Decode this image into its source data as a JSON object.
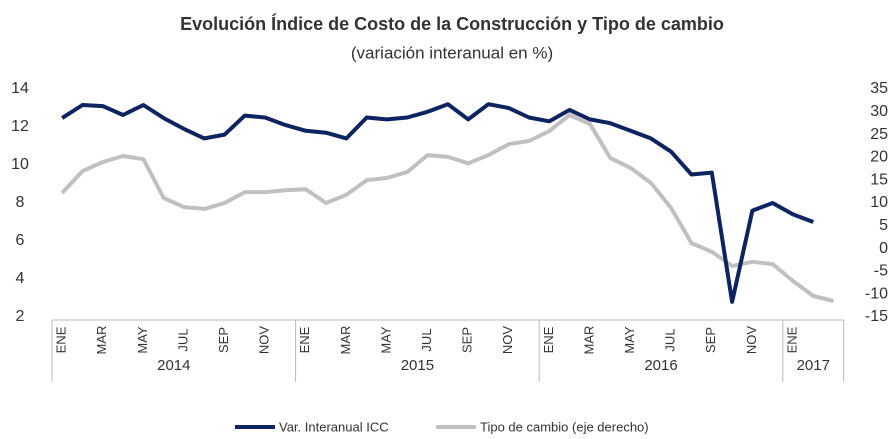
{
  "chart_data": {
    "type": "line",
    "title": "Evolución Índice de Costo de la Construcción y Tipo de cambio",
    "subtitle": "(variación interanual en %)",
    "categories": [
      "ENE",
      null,
      "MAR",
      null,
      "MAY",
      null,
      "JUL",
      null,
      "SEP",
      null,
      "NOV",
      null,
      "ENE",
      null,
      "MAR",
      null,
      "MAY",
      null,
      "JUL",
      null,
      "SEP",
      null,
      "NOV",
      null,
      "ENE",
      null,
      "MAR",
      null,
      "MAY",
      null,
      "JUL",
      null,
      "SEP",
      null,
      "NOV",
      null,
      "ENE",
      null,
      null
    ],
    "year_groups": [
      {
        "label": "2014",
        "months": 12
      },
      {
        "label": "2015",
        "months": 12
      },
      {
        "label": "2016",
        "months": 12
      },
      {
        "label": "2017",
        "months": 3
      }
    ],
    "series": [
      {
        "name": "Var. Interanual ICC",
        "color": "#0d2461",
        "axis": "y",
        "values": [
          12.47,
          13.16,
          13.1,
          12.63,
          13.16,
          12.47,
          11.9,
          11.4,
          11.6,
          12.6,
          12.5,
          12.1,
          11.8,
          11.7,
          11.4,
          12.5,
          12.4,
          12.5,
          12.8,
          13.2,
          12.4,
          13.2,
          13.0,
          12.5,
          12.3,
          12.9,
          12.4,
          12.2,
          11.8,
          11.4,
          10.7,
          9.5,
          9.6,
          2.8,
          7.6,
          8.0,
          7.4,
          7.0,
          null
        ]
      },
      {
        "name": "Tipo de cambio (eje derecho)",
        "color": "#c0c0c0",
        "axis": "y2",
        "values": [
          12.2,
          17.0,
          19.0,
          20.3,
          19.6,
          11.1,
          9.1,
          8.7,
          10.0,
          12.4,
          12.4,
          12.8,
          13.0,
          10.0,
          11.8,
          15.0,
          15.5,
          16.8,
          20.5,
          20.1,
          18.7,
          20.5,
          22.9,
          23.6,
          25.8,
          29.3,
          27.3,
          19.9,
          17.7,
          14.4,
          8.9,
          1.2,
          -0.7,
          -3.8,
          -2.9,
          -3.4,
          -7.1,
          -10.4,
          -11.5
        ]
      }
    ],
    "ylim": [
      2,
      14
    ],
    "yticks": [
      2,
      4,
      6,
      8,
      10,
      12,
      14
    ],
    "y2lim": [
      -15,
      35
    ],
    "y2ticks": [
      -15,
      -10,
      -5,
      0,
      5,
      10,
      15,
      20,
      25,
      30,
      35
    ],
    "legend": "bottom"
  }
}
